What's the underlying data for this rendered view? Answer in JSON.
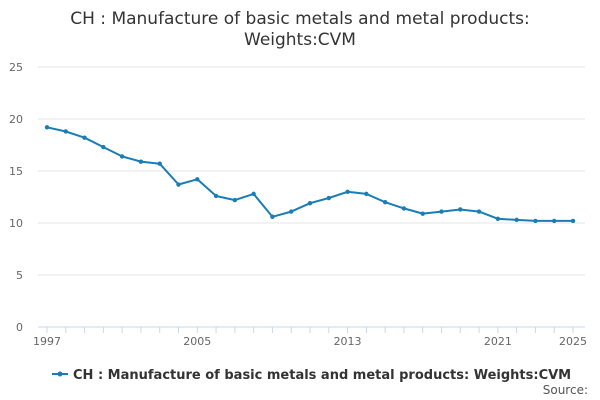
{
  "chart_data": {
    "type": "line",
    "title": "CH : Manufacture of basic metals and metal products: Weights:CVM",
    "title_lines": [
      "CH : Manufacture of basic metals and metal products:",
      "Weights:CVM"
    ],
    "xlabel": "",
    "ylabel": "",
    "xlim": [
      1997,
      2025
    ],
    "ylim": [
      0,
      25
    ],
    "x_ticks": [
      1997,
      2005,
      2013,
      2021,
      2025
    ],
    "y_ticks": [
      0,
      5,
      10,
      15,
      20,
      25
    ],
    "grid": true,
    "legend_position": "bottom",
    "source_label": "Source:",
    "series": [
      {
        "name": "CH : Manufacture of basic metals and metal products: Weights:CVM",
        "color": "#1a7db6",
        "x": [
          1997,
          1998,
          1999,
          2000,
          2001,
          2002,
          2003,
          2004,
          2005,
          2006,
          2007,
          2008,
          2009,
          2010,
          2011,
          2012,
          2013,
          2014,
          2015,
          2016,
          2017,
          2018,
          2019,
          2020,
          2021,
          2022,
          2023,
          2024,
          2025
        ],
        "values": [
          19.2,
          18.8,
          18.2,
          17.3,
          16.4,
          15.9,
          15.7,
          13.7,
          14.2,
          12.6,
          12.2,
          12.8,
          10.6,
          11.1,
          11.9,
          12.4,
          13.0,
          12.8,
          12.0,
          11.4,
          10.9,
          11.1,
          11.3,
          11.1,
          10.4,
          10.3,
          10.2,
          10.2,
          10.2
        ]
      }
    ]
  }
}
